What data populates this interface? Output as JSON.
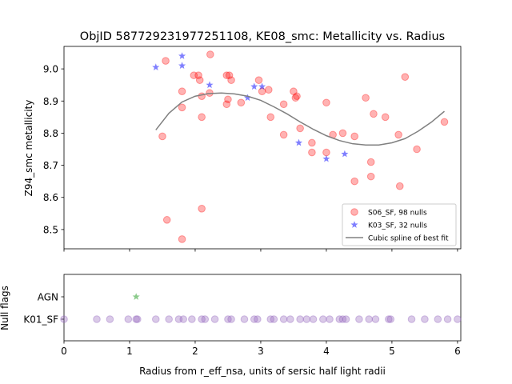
{
  "chart_data": [
    {
      "type": "scatter",
      "title": "ObjID 587729231977251108, KE08_smc: Metallicity vs. Radius",
      "ylabel": "Z94_smc metallicity",
      "xlabel": "",
      "xlim": [
        0,
        6.05
      ],
      "ylim": [
        8.44,
        9.07
      ],
      "yticks": [
        8.5,
        8.6,
        8.7,
        8.8,
        8.9,
        9.0
      ],
      "ytick_labels": [
        "8.5",
        "8.6",
        "8.7",
        "8.8",
        "8.9",
        "9.0"
      ],
      "legend_position": "lower-right",
      "series": [
        {
          "name": "S06_SF, 98 nulls",
          "marker": "circle",
          "color": "#ff0000",
          "points": [
            [
              1.5,
              8.79
            ],
            [
              1.55,
              9.025
            ],
            [
              1.57,
              8.53
            ],
            [
              1.8,
              8.93
            ],
            [
              1.8,
              8.88
            ],
            [
              1.8,
              8.47
            ],
            [
              1.98,
              8.98
            ],
            [
              2.05,
              8.98
            ],
            [
              2.07,
              8.965
            ],
            [
              2.1,
              8.915
            ],
            [
              2.1,
              8.85
            ],
            [
              2.1,
              8.565
            ],
            [
              2.22,
              8.925
            ],
            [
              2.23,
              9.045
            ],
            [
              2.48,
              8.98
            ],
            [
              2.48,
              8.89
            ],
            [
              2.5,
              8.905
            ],
            [
              2.52,
              8.98
            ],
            [
              2.55,
              8.965
            ],
            [
              2.7,
              8.895
            ],
            [
              2.97,
              8.965
            ],
            [
              3.02,
              8.93
            ],
            [
              3.12,
              8.935
            ],
            [
              3.15,
              8.85
            ],
            [
              3.35,
              8.89
            ],
            [
              3.35,
              8.795
            ],
            [
              3.5,
              8.93
            ],
            [
              3.53,
              8.91
            ],
            [
              3.55,
              8.915
            ],
            [
              3.6,
              8.815
            ],
            [
              3.78,
              8.77
            ],
            [
              3.78,
              8.74
            ],
            [
              4.0,
              8.895
            ],
            [
              4.0,
              8.74
            ],
            [
              4.1,
              8.795
            ],
            [
              4.25,
              8.8
            ],
            [
              4.43,
              8.79
            ],
            [
              4.43,
              8.65
            ],
            [
              4.6,
              8.91
            ],
            [
              4.68,
              8.71
            ],
            [
              4.68,
              8.665
            ],
            [
              4.72,
              8.86
            ],
            [
              4.9,
              8.85
            ],
            [
              5.1,
              8.795
            ],
            [
              5.12,
              8.635
            ],
            [
              5.2,
              8.975
            ],
            [
              5.38,
              8.75
            ],
            [
              5.8,
              8.835
            ]
          ]
        },
        {
          "name": "K03_SF, 32 nulls",
          "marker": "star",
          "color": "#0000ff",
          "points": [
            [
              1.4,
              9.005
            ],
            [
              1.8,
              9.04
            ],
            [
              1.8,
              9.01
            ],
            [
              2.22,
              8.95
            ],
            [
              2.8,
              8.91
            ],
            [
              2.9,
              8.945
            ],
            [
              3.02,
              8.945
            ],
            [
              3.58,
              8.77
            ],
            [
              4.0,
              8.72
            ],
            [
              4.28,
              8.735
            ]
          ]
        },
        {
          "name": "Cubic spline of best fit",
          "marker": "line",
          "color": "#808080",
          "points": [
            [
              1.4,
              8.81
            ],
            [
              1.6,
              8.862
            ],
            [
              1.8,
              8.897
            ],
            [
              2.0,
              8.915
            ],
            [
              2.2,
              8.923
            ],
            [
              2.4,
              8.925
            ],
            [
              2.6,
              8.922
            ],
            [
              2.8,
              8.915
            ],
            [
              3.0,
              8.902
            ],
            [
              3.2,
              8.882
            ],
            [
              3.4,
              8.86
            ],
            [
              3.6,
              8.835
            ],
            [
              3.8,
              8.812
            ],
            [
              4.0,
              8.792
            ],
            [
              4.2,
              8.777
            ],
            [
              4.4,
              8.767
            ],
            [
              4.6,
              8.763
            ],
            [
              4.8,
              8.763
            ],
            [
              5.0,
              8.77
            ],
            [
              5.2,
              8.783
            ],
            [
              5.4,
              8.806
            ],
            [
              5.6,
              8.834
            ],
            [
              5.8,
              8.868
            ]
          ]
        }
      ]
    },
    {
      "type": "scatter",
      "title": "",
      "xlabel": "Radius from r_eff_nsa, units of sersic half light radii",
      "ylabel": "Null flags",
      "xlim": [
        0,
        6.05
      ],
      "xticks": [
        0,
        1,
        2,
        3,
        4,
        5,
        6
      ],
      "xtick_labels": [
        "0",
        "1",
        "2",
        "3",
        "4",
        "5",
        "6"
      ],
      "categories": [
        "K01_SF",
        "AGN"
      ],
      "series": [
        {
          "name": "AGN",
          "marker": "star",
          "color": "#2ca02c",
          "points": [
            [
              1.1,
              "AGN"
            ]
          ]
        },
        {
          "name": "K01_SF",
          "marker": "circle",
          "color": "#9467bd",
          "points": [
            [
              0.0,
              "K01_SF"
            ],
            [
              0.5,
              "K01_SF"
            ],
            [
              0.7,
              "K01_SF"
            ],
            [
              0.98,
              "K01_SF"
            ],
            [
              1.1,
              "K01_SF"
            ],
            [
              1.12,
              "K01_SF"
            ],
            [
              1.4,
              "K01_SF"
            ],
            [
              1.6,
              "K01_SF"
            ],
            [
              1.75,
              "K01_SF"
            ],
            [
              1.82,
              "K01_SF"
            ],
            [
              1.95,
              "K01_SF"
            ],
            [
              2.1,
              "K01_SF"
            ],
            [
              2.15,
              "K01_SF"
            ],
            [
              2.3,
              "K01_SF"
            ],
            [
              2.5,
              "K01_SF"
            ],
            [
              2.55,
              "K01_SF"
            ],
            [
              2.75,
              "K01_SF"
            ],
            [
              2.9,
              "K01_SF"
            ],
            [
              2.95,
              "K01_SF"
            ],
            [
              3.15,
              "K01_SF"
            ],
            [
              3.2,
              "K01_SF"
            ],
            [
              3.35,
              "K01_SF"
            ],
            [
              3.45,
              "K01_SF"
            ],
            [
              3.6,
              "K01_SF"
            ],
            [
              3.7,
              "K01_SF"
            ],
            [
              3.8,
              "K01_SF"
            ],
            [
              3.95,
              "K01_SF"
            ],
            [
              4.05,
              "K01_SF"
            ],
            [
              4.2,
              "K01_SF"
            ],
            [
              4.25,
              "K01_SF"
            ],
            [
              4.3,
              "K01_SF"
            ],
            [
              4.5,
              "K01_SF"
            ],
            [
              4.65,
              "K01_SF"
            ],
            [
              4.75,
              "K01_SF"
            ],
            [
              4.95,
              "K01_SF"
            ],
            [
              4.98,
              "K01_SF"
            ],
            [
              5.3,
              "K01_SF"
            ],
            [
              5.5,
              "K01_SF"
            ],
            [
              5.7,
              "K01_SF"
            ],
            [
              5.85,
              "K01_SF"
            ],
            [
              6.0,
              "K01_SF"
            ]
          ]
        }
      ]
    }
  ]
}
